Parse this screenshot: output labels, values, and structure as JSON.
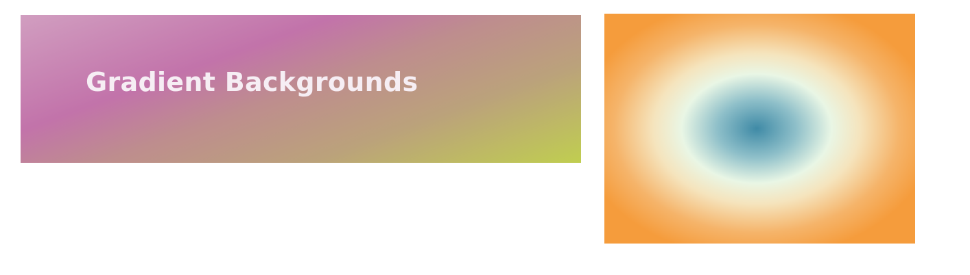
{
  "heading": {
    "text": "Gradient Backgrounds"
  },
  "colors": {
    "linear_gradient": [
      "#d19ec0",
      "#c273aa",
      "#be8d8e",
      "#bba27b",
      "#c0ce50"
    ],
    "radial_gradient": [
      "#3f8aa6",
      "#8ebfc9",
      "#e9f6e5",
      "#f5e4bd",
      "#f5b46a",
      "#f59c3c"
    ],
    "title_text": "#f6eef4"
  }
}
